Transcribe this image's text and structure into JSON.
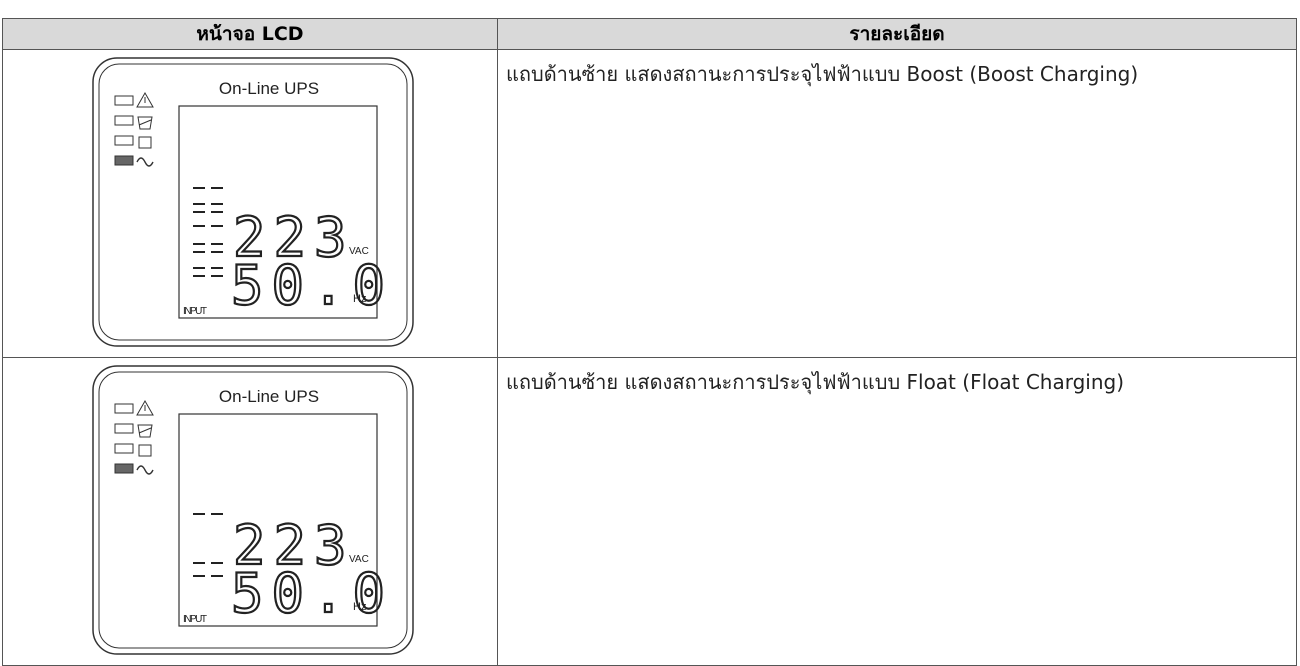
{
  "table": {
    "header": [
      "หน้าจอ LCD",
      "รายละเอียด"
    ],
    "rows": [
      {
        "lcd": {
          "title": "On-Line UPS",
          "voltage": "223",
          "voltage_unit": "VAC",
          "frequency": "50.0",
          "frequency_unit": "Hz",
          "label": "INPUT"
        },
        "description": "แถบด้านซ้าย แสดงสถานะการประจุไฟฟ้าแบบ Boost (Boost Charging)"
      },
      {
        "lcd": {
          "title": "On-Line UPS",
          "voltage": "223",
          "voltage_unit": "VAC",
          "frequency": "50.0",
          "frequency_unit": "Hz",
          "label": "INPUT"
        },
        "description": "แถบด้านซ้าย แสดงสถานะการประจุไฟฟ้าแบบ Float (Float Charging)"
      }
    ]
  }
}
